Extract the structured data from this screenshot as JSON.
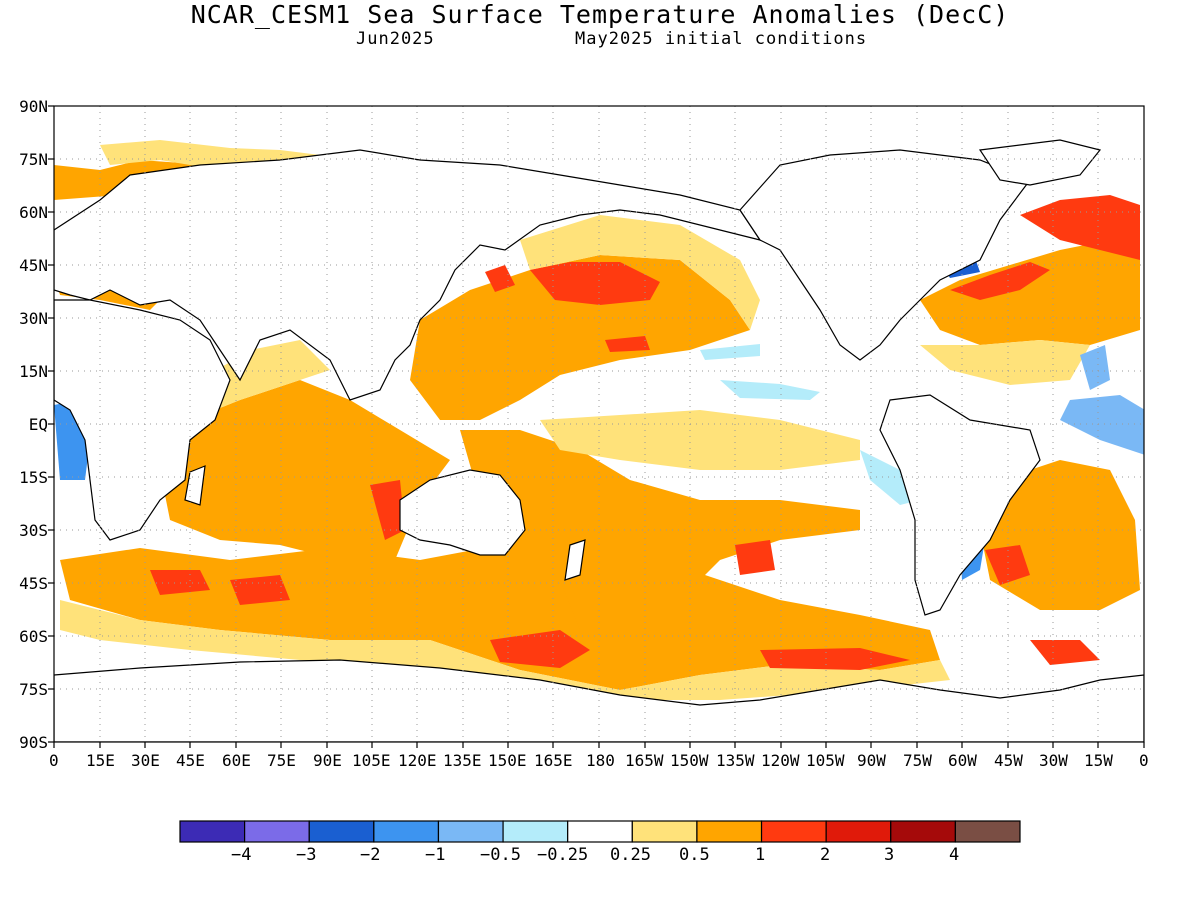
{
  "header": {
    "title": "NCAR_CESM1 Sea Surface Temperature Anomalies (DecC)",
    "valid_month": "Jun2025",
    "initial_conditions": "May2025 initial conditions"
  },
  "axes": {
    "lat_labels": [
      "90N",
      "75N",
      "60N",
      "45N",
      "30N",
      "15N",
      "EQ",
      "15S",
      "30S",
      "45S",
      "60S",
      "75S",
      "90S"
    ],
    "lon_labels": [
      "0",
      "15E",
      "30E",
      "45E",
      "60E",
      "75E",
      "90E",
      "105E",
      "120E",
      "135E",
      "150E",
      "165E",
      "180",
      "165W",
      "150W",
      "135W",
      "120W",
      "105W",
      "90W",
      "75W",
      "60W",
      "45W",
      "30W",
      "15W",
      "0"
    ]
  },
  "colorbar": {
    "colors": [
      "#3c2bb5",
      "#7b6be8",
      "#1a5fd1",
      "#3d94f0",
      "#7ab8f5",
      "#b4ecfa",
      "#ffffff",
      "#ffe27a",
      "#ffa500",
      "#ff3a10",
      "#e01a0a",
      "#a50a0a",
      "#7a4e44"
    ],
    "labels": [
      "−4",
      "−3",
      "−2",
      "−1",
      "−0.5",
      "−0.25",
      "0.25",
      "0.5",
      "1",
      "2",
      "3",
      "4"
    ]
  },
  "palette": {
    "land": "#ffffff",
    "ocean_neutral": "#ffffff",
    "weak_warm": "#ffe27a",
    "warm": "#ffa500",
    "hot": "#ff3a10",
    "weak_cool": "#b4ecfa",
    "cool": "#7ab8f5",
    "cold": "#3d94f0",
    "colder": "#1a5fd1"
  }
}
